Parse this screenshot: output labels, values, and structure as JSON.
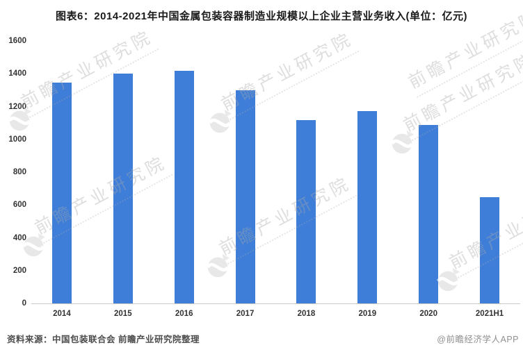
{
  "title": "图表6：2014-2021年中国金属包装容器制造业规模以上企业主营业务收入(单位：亿元)",
  "chart_data": {
    "type": "bar",
    "title": "图表6：2014-2021年中国金属包装容器制造业规模以上企业主营业务收入(单位：亿元)",
    "categories": [
      "2014",
      "2015",
      "2016",
      "2017",
      "2018",
      "2019",
      "2020",
      "2021H1"
    ],
    "values": [
      1345,
      1400,
      1417,
      1299,
      1118,
      1172,
      1088,
      648
    ],
    "unit": "亿元",
    "xlabel": "",
    "ylabel": "",
    "ylim": [
      0,
      1600
    ],
    "yticks": [
      0,
      200,
      400,
      600,
      800,
      1000,
      1200,
      1400,
      1600
    ],
    "bar_color": "#3E7ED8",
    "grid": false,
    "legend_position": "none"
  },
  "watermark": {
    "text": "前瞻产业研究院"
  },
  "footer": {
    "source": "资料来源：中国包装联合会 前瞻产业研究院整理",
    "credit": "@前瞻经济学人APP"
  }
}
